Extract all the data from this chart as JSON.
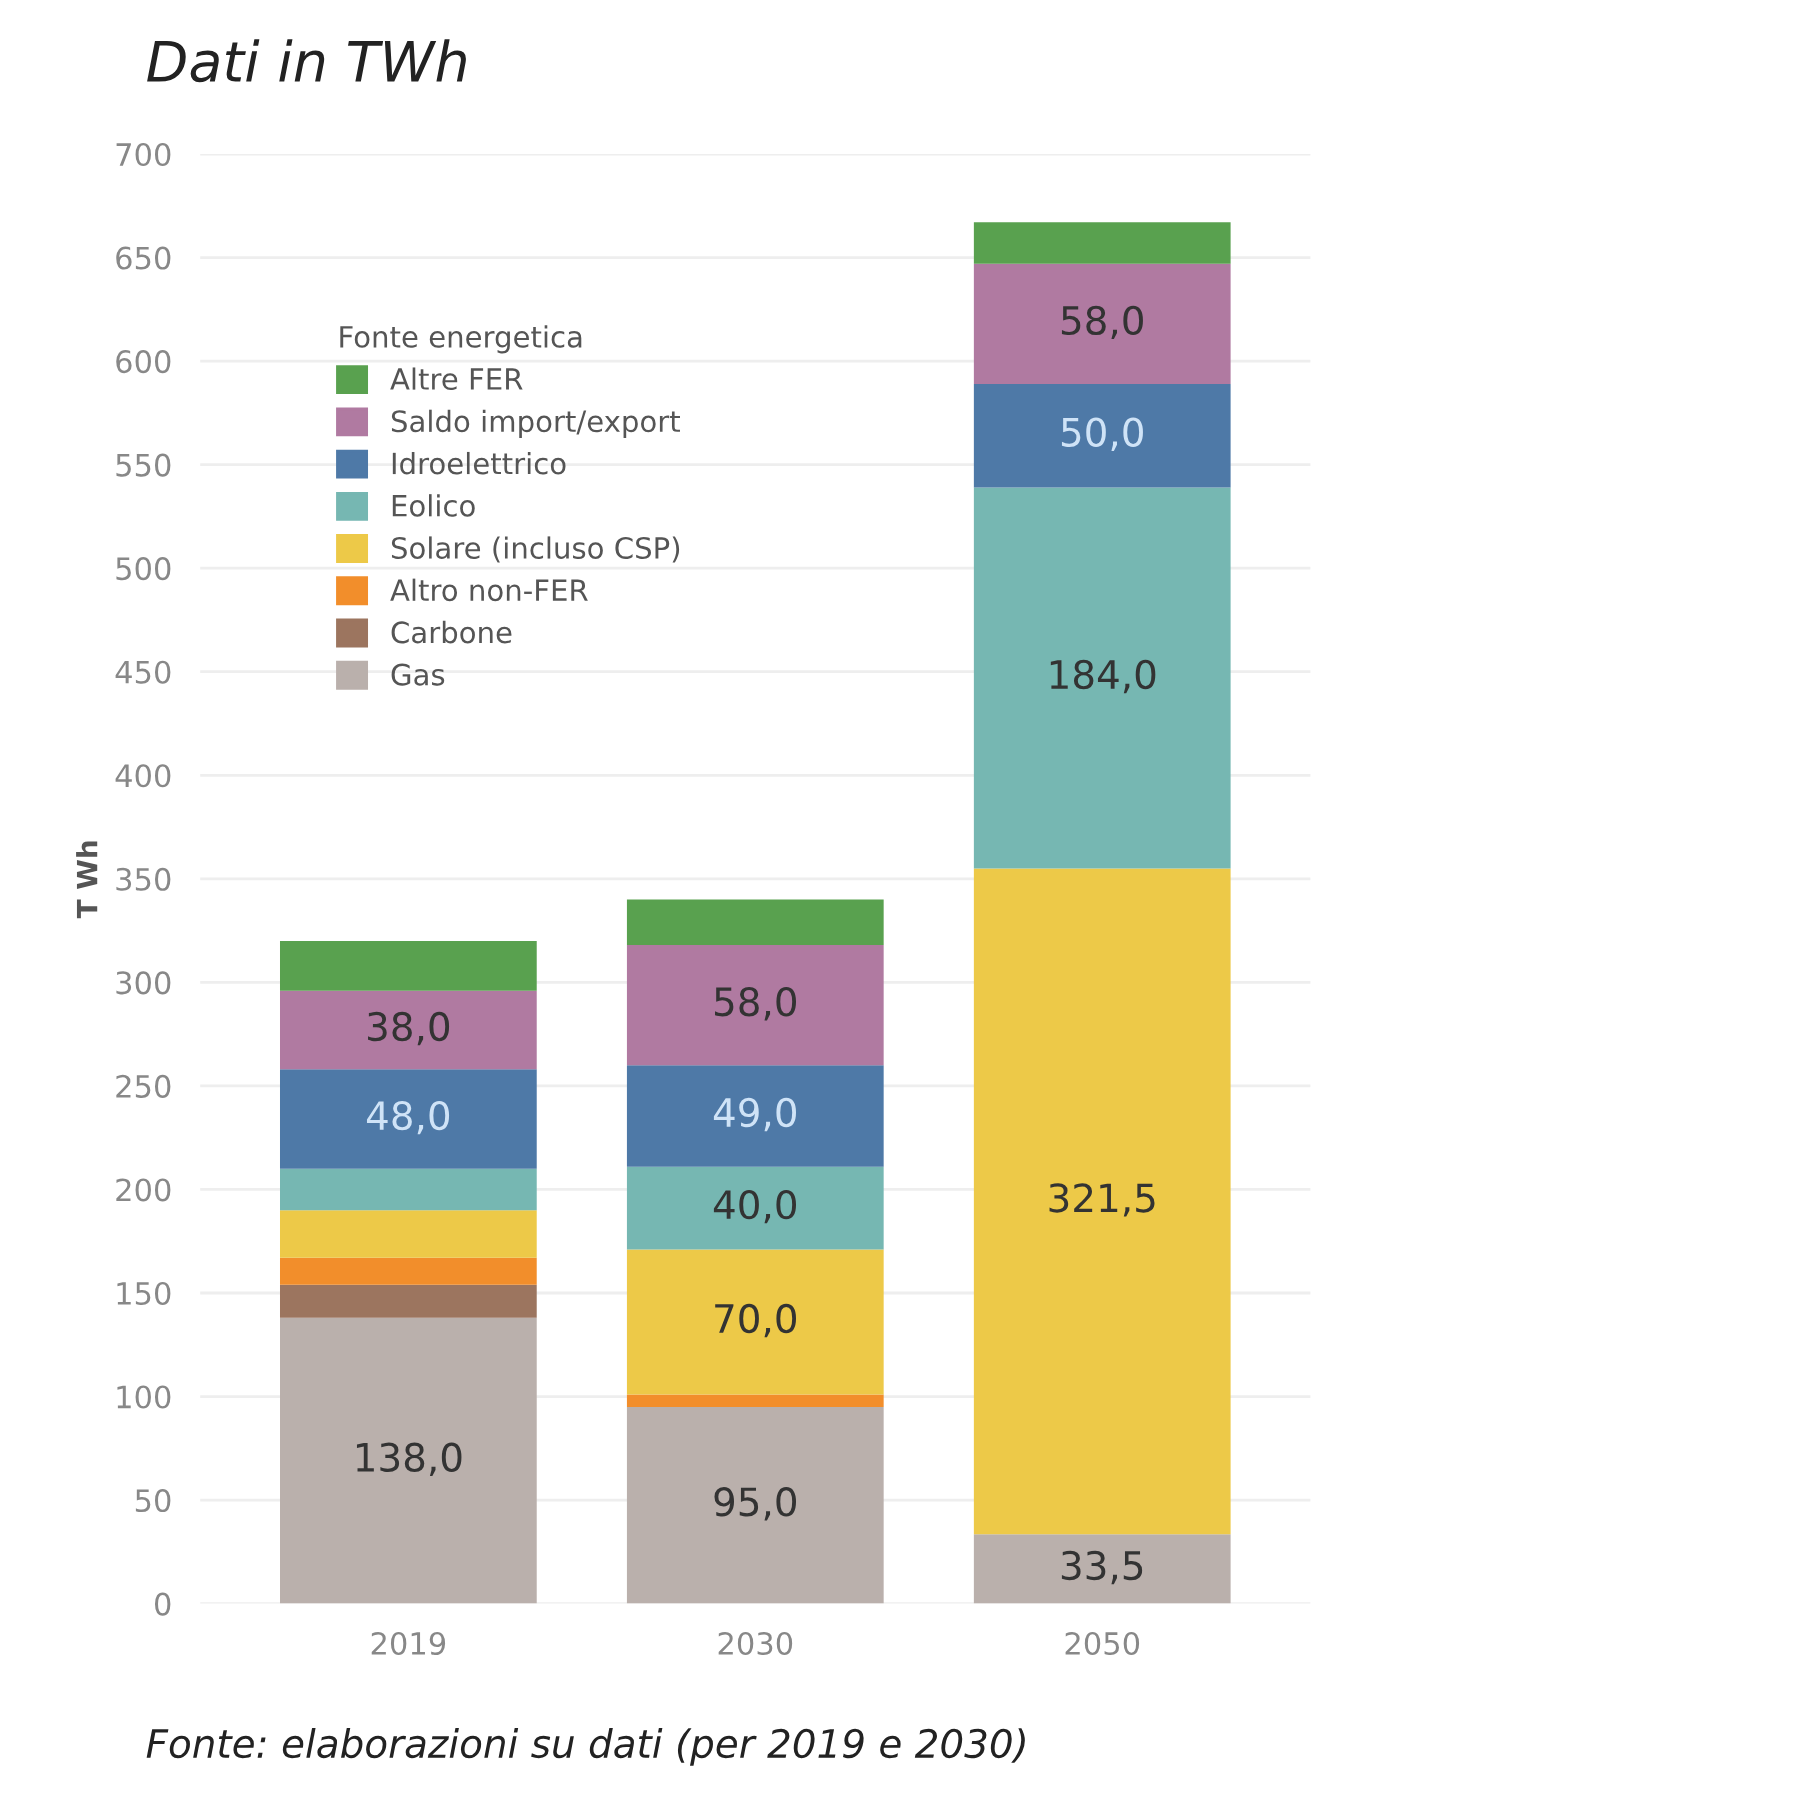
{
  "chart_data": {
    "type": "bar",
    "stacked": true,
    "title": "Dati in TWh",
    "ylabel": "T Wh",
    "legend_title": "Fonte energetica",
    "categories": [
      "2019",
      "2030",
      "2050"
    ],
    "series": [
      {
        "name": "Gas",
        "color": "#bab0ac",
        "values": [
          138.0,
          95.0,
          33.5
        ],
        "value_labels": [
          "138,0",
          "95,0",
          "33,5"
        ]
      },
      {
        "name": "Carbone",
        "color": "#9c755f",
        "values": [
          16,
          0,
          0
        ],
        "value_labels": [
          null,
          null,
          null
        ]
      },
      {
        "name": "Altro non-FER",
        "color": "#f28e2b",
        "values": [
          13,
          6,
          0
        ],
        "value_labels": [
          null,
          null,
          null
        ]
      },
      {
        "name": "Solare (incluso CSP)",
        "color": "#edc948",
        "values": [
          23,
          70.0,
          321.5
        ],
        "value_labels": [
          null,
          "70,0",
          "321,5"
        ]
      },
      {
        "name": "Eolico",
        "color": "#76b7b2",
        "values": [
          20,
          40.0,
          184.0
        ],
        "value_labels": [
          null,
          "40,0",
          "184,0"
        ]
      },
      {
        "name": "Idroelettrico",
        "color": "#4e79a7",
        "values": [
          48.0,
          49.0,
          50.0
        ],
        "value_labels": [
          "48,0",
          "49,0",
          "50,0"
        ]
      },
      {
        "name": "Saldo import/export",
        "color": "#b07aa1",
        "values": [
          38.0,
          58.0,
          58.0
        ],
        "value_labels": [
          "38,0",
          "58,0",
          "58,0"
        ]
      },
      {
        "name": "Altre FER",
        "color": "#59a14f",
        "values": [
          24,
          22,
          20
        ],
        "value_labels": [
          null,
          null,
          null
        ]
      }
    ],
    "ylim": [
      0,
      700
    ],
    "yticks": [
      0,
      50,
      100,
      150,
      200,
      250,
      300,
      350,
      400,
      450,
      500,
      550,
      600,
      650,
      700
    ],
    "grid": "y",
    "legend": "top left",
    "annotations": [
      "Fonte: elaborazioni su dati (per 2019 e 2030)"
    ]
  }
}
